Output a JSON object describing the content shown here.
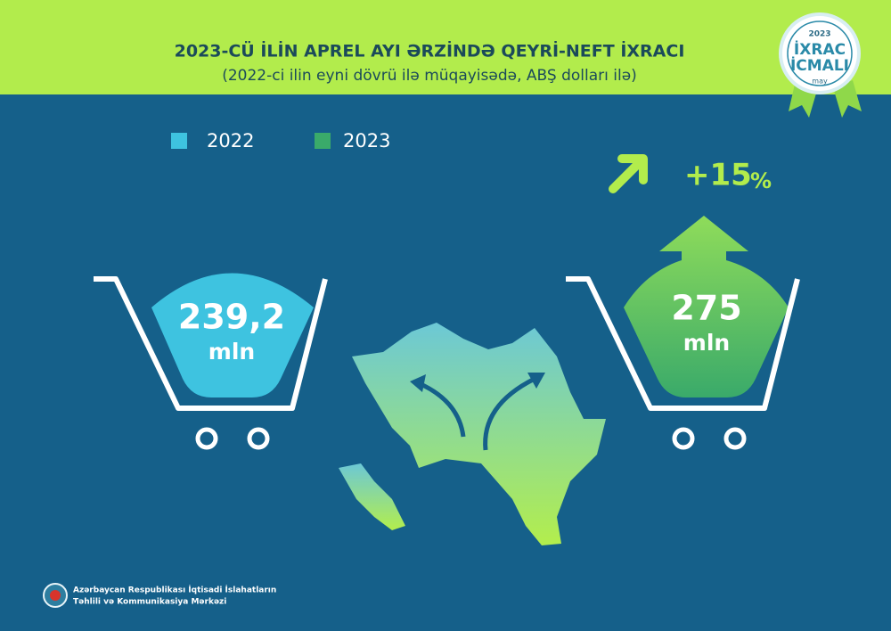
{
  "header": {
    "title": "2023-CÜ İLİN APREL AYI ƏRZİNDƏ QEYRİ-NEFT İXRACI",
    "subtitle": "(2022-ci ilin eyni dövrü ilə müqayisədə, ABŞ dolları ilə)"
  },
  "badge": {
    "year": "2023",
    "line1": "İXRAC",
    "line2": "İCMALI",
    "month": "may"
  },
  "legend": [
    {
      "label": "2022",
      "color": "#3ec3e0"
    },
    {
      "label": "2023",
      "color": "#3aaa6a"
    }
  ],
  "baskets": [
    {
      "value": "239,2",
      "unit": "mln"
    },
    {
      "value": "275",
      "unit": "mln"
    }
  ],
  "change": {
    "value": "+15",
    "unit": "%"
  },
  "footer": {
    "line1": "Azərbaycan Respublikası İqtisadi İslahatların",
    "line2": "Təhlili və Kommunikasiya Mərkəzi"
  }
}
